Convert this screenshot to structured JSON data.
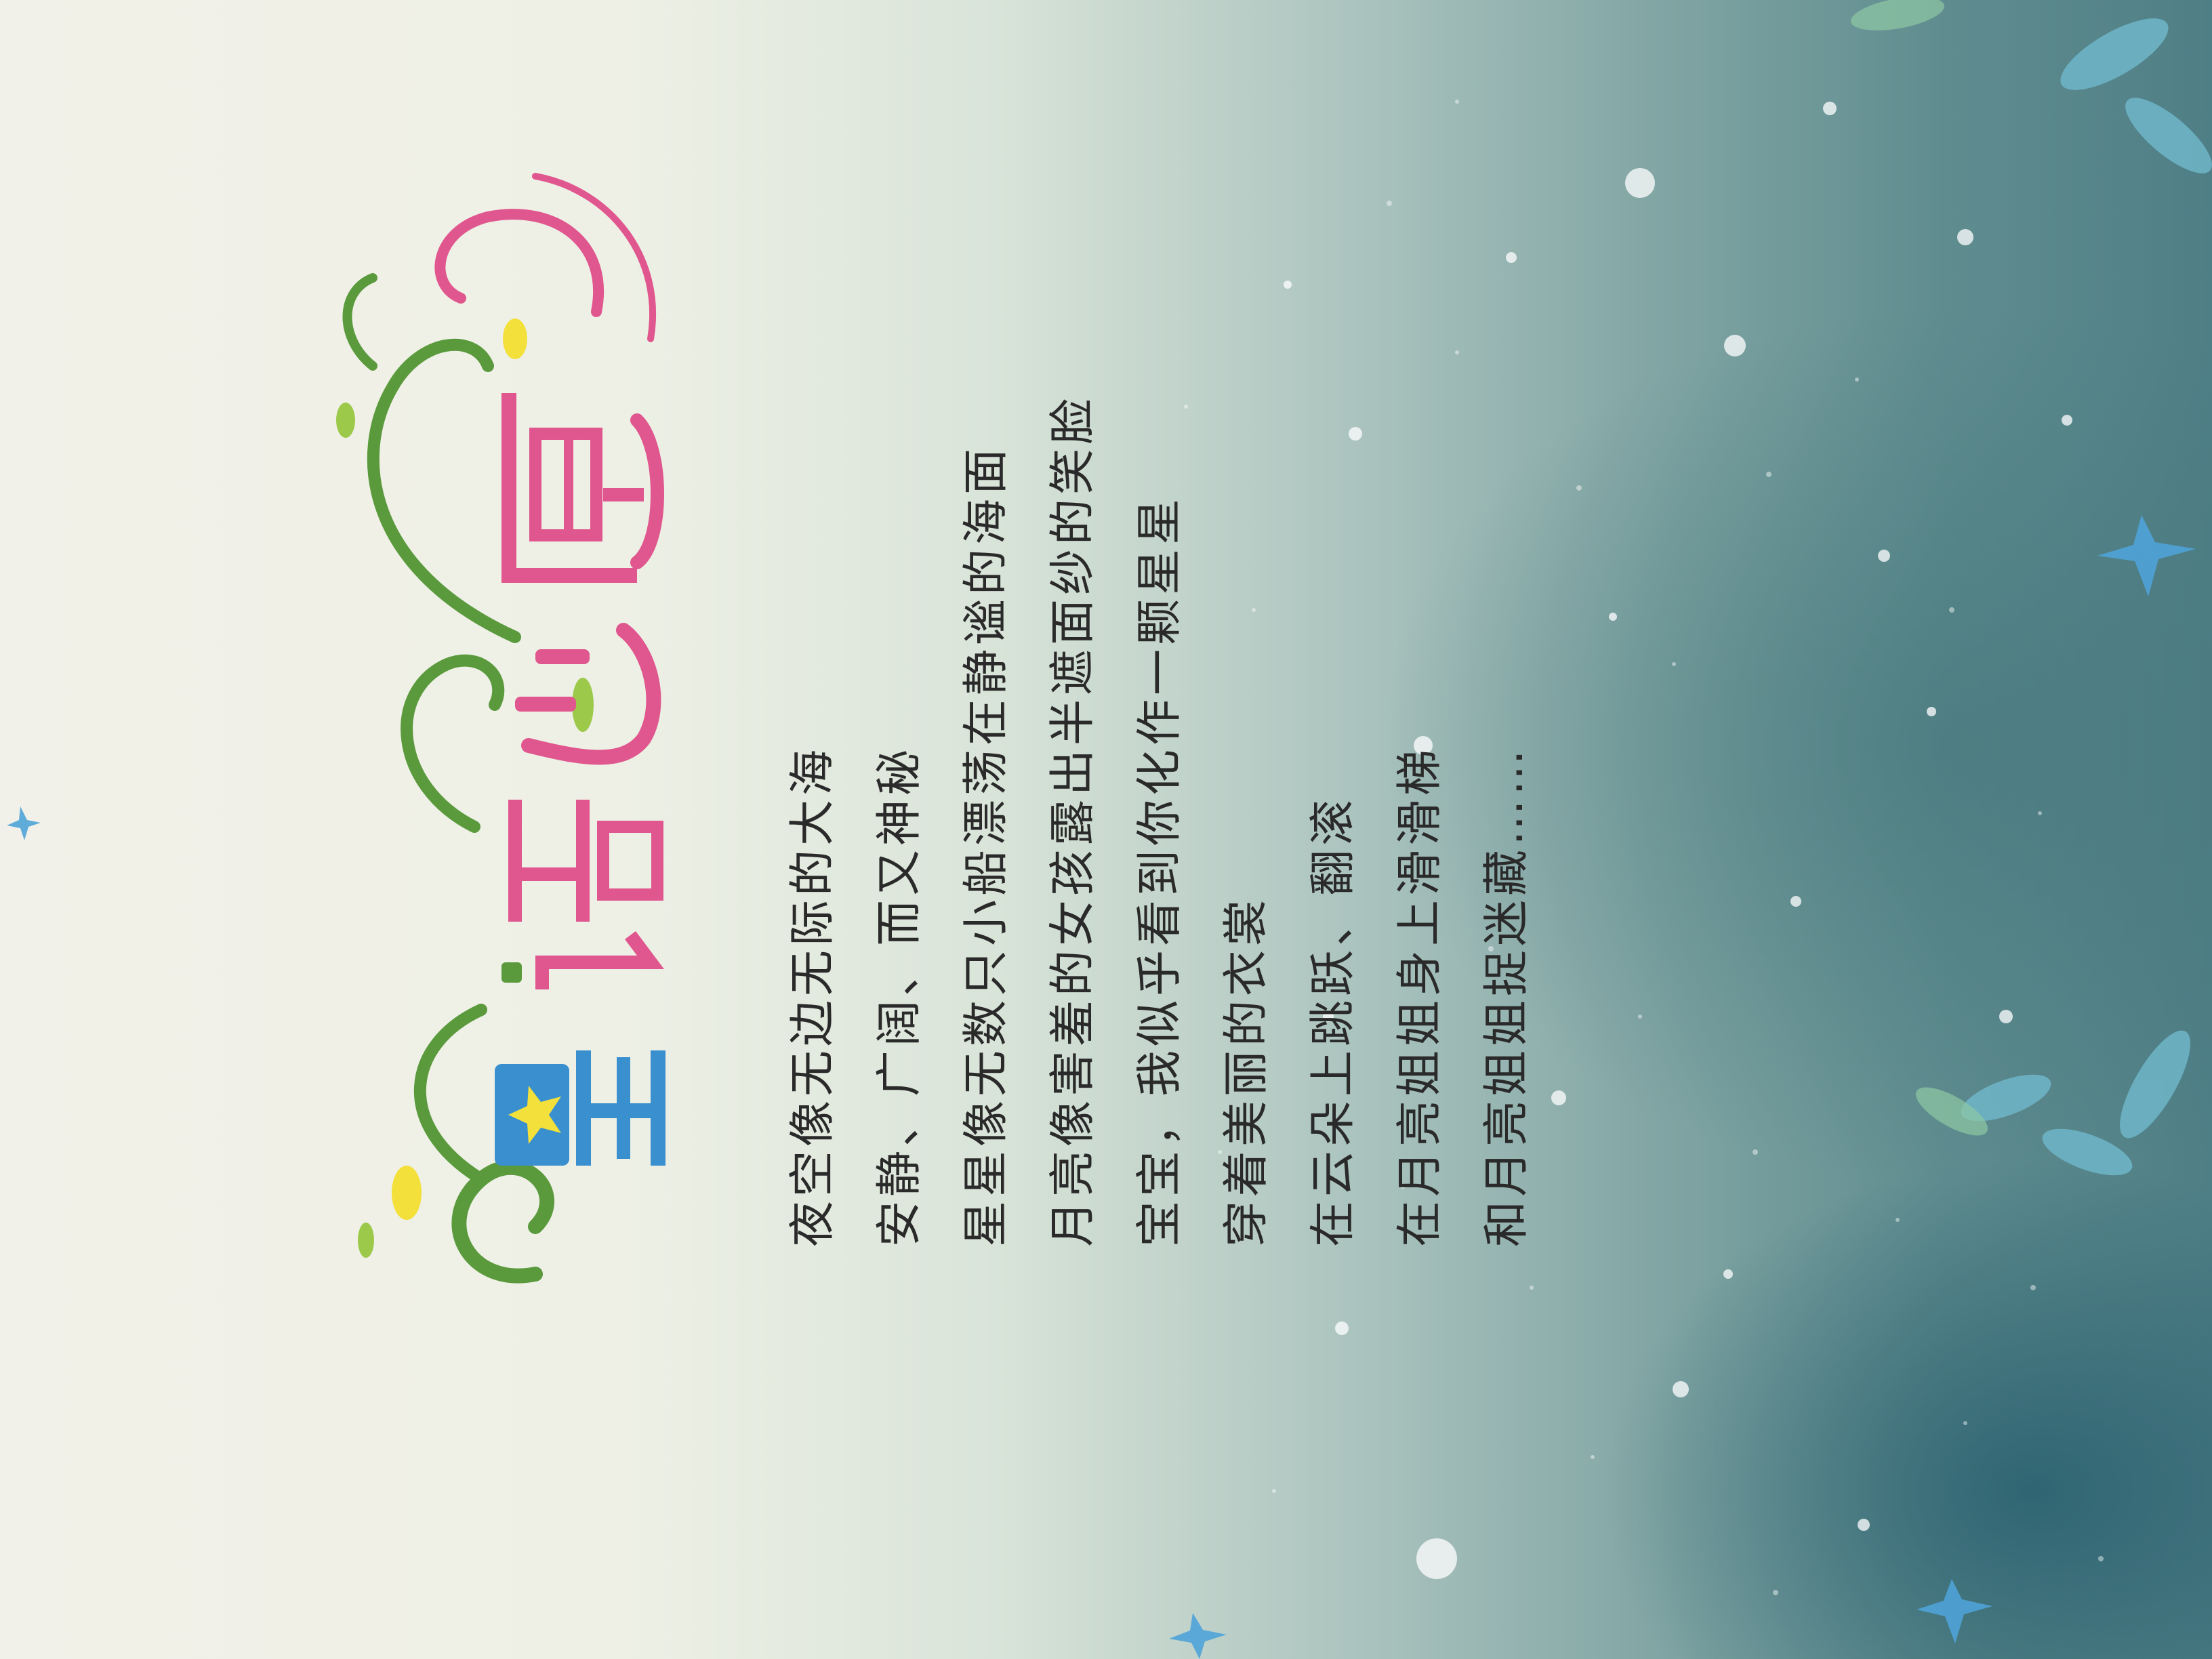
{
  "title": {
    "text": "星语心愿"
  },
  "poem": {
    "lines": [
      "夜空像无边无际的大海",
      "安静、广阔、而又神秘",
      "星星像无数只小船漂荡在静谧的海面",
      "月亮像害羞的女孩露出半遮面纱的笑脸",
      "宝宝，我似乎看到你化作一颗星星",
      "穿着美丽的衣裳",
      "在云朵上跳跃、翻滚",
      "在月亮姐姐身上滑滑梯",
      "和月亮姐姐捉迷藏……"
    ]
  },
  "colors": {
    "ink": "#2a2a2a",
    "logo_green": "#5a9a3c",
    "logo_blue": "#3a8fcf",
    "logo_pink": "#e0568e",
    "logo_yellow": "#f3e03a",
    "teal_bg": "#4f7f86"
  }
}
